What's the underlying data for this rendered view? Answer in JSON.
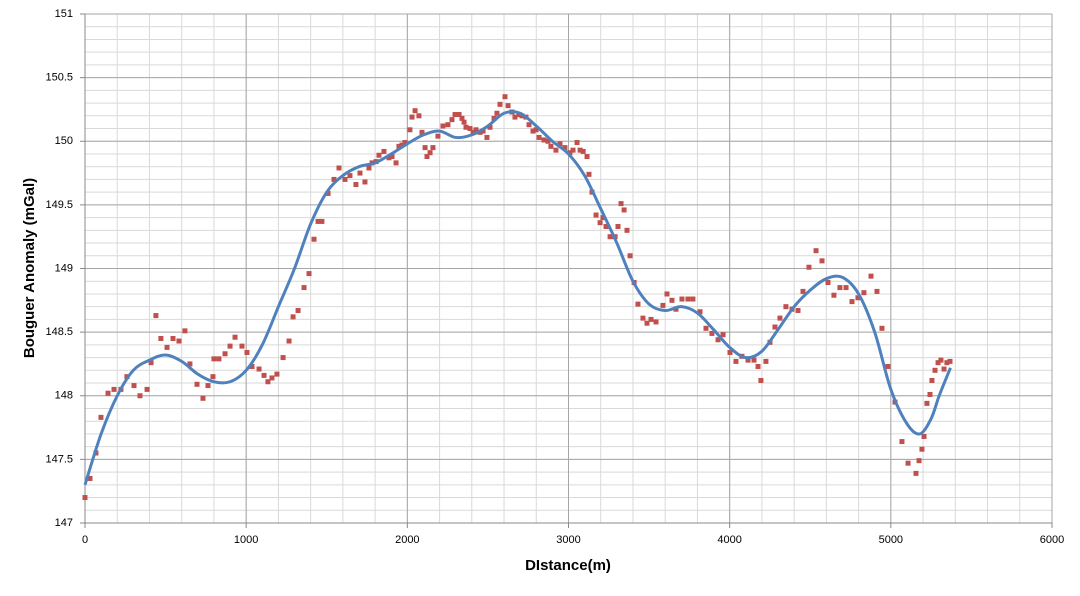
{
  "chart_data": {
    "type": "scatter",
    "x_label": "DIstance(m)",
    "y_label": "Bouguer Anomaly (mGal)",
    "xlim": [
      0,
      6000
    ],
    "xticks": [
      0,
      1000,
      2000,
      3000,
      4000,
      5000,
      6000
    ],
    "ylim": [
      147,
      151
    ],
    "yticks": [
      147,
      147.5,
      148,
      148.5,
      149,
      149.5,
      150,
      150.5,
      151
    ],
    "grid": true,
    "x_minor_step": 200,
    "y_minor_step": 0.1,
    "series": [
      {
        "type": "scatter",
        "color": "#c0504d",
        "x": [
          0,
          31,
          68,
          99,
          143,
          180,
          223,
          260,
          304,
          341,
          385,
          410,
          440,
          471,
          509,
          546,
          583,
          620,
          651,
          695,
          732,
          763,
          794,
          800,
          831,
          869,
          900,
          931,
          974,
          1005,
          1036,
          1080,
          1111,
          1135,
          1160,
          1191,
          1229,
          1266,
          1291,
          1322,
          1359,
          1390,
          1421,
          1446,
          1470,
          1508,
          1545,
          1576,
          1613,
          1644,
          1681,
          1706,
          1737,
          1762,
          1781,
          1806,
          1824,
          1855,
          1886,
          1905,
          1930,
          1948,
          1967,
          1985,
          2016,
          2029,
          2048,
          2072,
          2091,
          2110,
          2122,
          2141,
          2159,
          2190,
          2221,
          2252,
          2277,
          2296,
          2321,
          2339,
          2352,
          2364,
          2389,
          2408,
          2426,
          2451,
          2470,
          2494,
          2513,
          2538,
          2556,
          2575,
          2606,
          2625,
          2649,
          2668,
          2693,
          2711,
          2736,
          2755,
          2780,
          2799,
          2817,
          2848,
          2873,
          2891,
          2922,
          2947,
          2978,
          3009,
          3028,
          3053,
          3072,
          3091,
          3115,
          3127,
          3146,
          3171,
          3196,
          3214,
          3233,
          3258,
          3289,
          3307,
          3326,
          3345,
          3363,
          3382,
          3407,
          3431,
          3462,
          3487,
          3512,
          3543,
          3586,
          3611,
          3642,
          3667,
          3704,
          3741,
          3772,
          3816,
          3853,
          3890,
          3928,
          3959,
          4002,
          4039,
          4076,
          4114,
          4151,
          4176,
          4194,
          4225,
          4250,
          4281,
          4312,
          4349,
          4387,
          4424,
          4455,
          4492,
          4536,
          4573,
          4610,
          4647,
          4684,
          4722,
          4759,
          4796,
          4833,
          4877,
          4914,
          4945,
          4982,
          5026,
          5069,
          5107,
          5156,
          5175,
          5193,
          5206,
          5224,
          5243,
          5255,
          5274,
          5293,
          5311,
          5330,
          5348,
          5367
        ],
        "values": [
          147.2,
          147.35,
          147.55,
          147.83,
          148.02,
          148.05,
          148.05,
          148.15,
          148.08,
          148.0,
          148.05,
          148.26,
          148.63,
          148.45,
          148.38,
          148.45,
          148.43,
          148.51,
          148.25,
          148.09,
          147.98,
          148.08,
          148.15,
          148.29,
          148.29,
          148.33,
          148.39,
          148.46,
          148.39,
          148.34,
          148.23,
          148.21,
          148.16,
          148.11,
          148.14,
          148.17,
          148.3,
          148.43,
          148.62,
          148.67,
          148.85,
          148.96,
          149.23,
          149.37,
          149.37,
          149.59,
          149.7,
          149.79,
          149.7,
          149.73,
          149.66,
          149.75,
          149.68,
          149.79,
          149.83,
          149.84,
          149.89,
          149.92,
          149.87,
          149.88,
          149.83,
          149.96,
          149.97,
          149.99,
          150.09,
          150.19,
          150.24,
          150.2,
          150.07,
          149.95,
          149.88,
          149.91,
          149.95,
          150.04,
          150.12,
          150.13,
          150.17,
          150.21,
          150.21,
          150.18,
          150.15,
          150.11,
          150.1,
          150.07,
          150.09,
          150.07,
          150.08,
          150.03,
          150.11,
          150.18,
          150.22,
          150.29,
          150.35,
          150.28,
          150.23,
          150.19,
          150.21,
          150.2,
          150.19,
          150.13,
          150.08,
          150.09,
          150.03,
          150.01,
          150.0,
          149.96,
          149.93,
          149.98,
          149.95,
          149.91,
          149.93,
          149.99,
          149.93,
          149.92,
          149.88,
          149.74,
          149.6,
          149.42,
          149.36,
          149.4,
          149.33,
          149.25,
          149.25,
          149.33,
          149.51,
          149.46,
          149.3,
          149.1,
          148.89,
          148.72,
          148.61,
          148.57,
          148.6,
          148.58,
          148.71,
          148.8,
          148.75,
          148.68,
          148.76,
          148.76,
          148.76,
          148.66,
          148.53,
          148.49,
          148.44,
          148.48,
          148.34,
          148.27,
          148.31,
          148.28,
          148.28,
          148.23,
          148.12,
          148.27,
          148.42,
          148.54,
          148.61,
          148.7,
          148.68,
          148.67,
          148.82,
          149.01,
          149.14,
          149.06,
          148.89,
          148.79,
          148.85,
          148.85,
          148.74,
          148.77,
          148.81,
          148.94,
          148.82,
          148.53,
          148.23,
          147.95,
          147.64,
          147.47,
          147.39,
          147.49,
          147.58,
          147.68,
          147.94,
          148.01,
          148.12,
          148.2,
          148.26,
          148.28,
          148.21,
          148.26,
          148.27
        ]
      },
      {
        "type": "line",
        "color": "#4f81bd",
        "x": [
          0,
          100,
          200,
          300,
          400,
          500,
          600,
          700,
          800,
          900,
          1000,
          1100,
          1200,
          1300,
          1400,
          1500,
          1600,
          1700,
          1800,
          1900,
          2000,
          2100,
          2200,
          2300,
          2400,
          2500,
          2600,
          2700,
          2800,
          2900,
          3000,
          3100,
          3200,
          3300,
          3400,
          3500,
          3600,
          3700,
          3800,
          3900,
          4000,
          4100,
          4200,
          4300,
          4400,
          4500,
          4600,
          4700,
          4800,
          4900,
          5000,
          5100,
          5180,
          5250,
          5300,
          5370
        ],
        "values": [
          147.3,
          147.7,
          148.0,
          148.2,
          148.28,
          148.32,
          148.27,
          148.17,
          148.11,
          148.11,
          148.2,
          148.4,
          148.7,
          149.0,
          149.35,
          149.6,
          149.73,
          149.8,
          149.83,
          149.9,
          149.98,
          150.05,
          150.08,
          150.03,
          150.05,
          150.12,
          150.22,
          150.22,
          150.12,
          150.0,
          149.9,
          149.73,
          149.47,
          149.2,
          148.9,
          148.72,
          148.67,
          148.7,
          148.65,
          148.52,
          148.38,
          148.3,
          148.35,
          148.52,
          148.7,
          148.83,
          148.92,
          148.93,
          148.8,
          148.5,
          148.05,
          147.78,
          147.7,
          147.82,
          148.0,
          148.22
        ]
      }
    ]
  }
}
